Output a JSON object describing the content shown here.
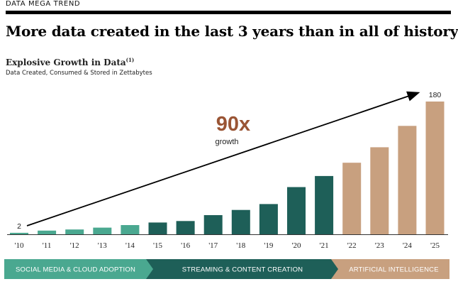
{
  "header": {
    "section_tag": "DATA MEGA TREND",
    "headline": "More data created in the last 3 years than in all of history"
  },
  "chart_data": {
    "type": "bar",
    "title": "Explosive Growth in Data",
    "title_footnote": "(1)",
    "subtitle": "Data Created, Consumed & Stored in Zettabytes",
    "categories": [
      "'10",
      "'11",
      "'12",
      "'13",
      "'14",
      "'15",
      "'16",
      "'17",
      "'18",
      "'19",
      "'20",
      "'21",
      "'22",
      "'23",
      "'24",
      "'25"
    ],
    "values": [
      2,
      5,
      6.5,
      9,
      12.5,
      16,
      18,
      26,
      33,
      41,
      64,
      79,
      97,
      118,
      147,
      180
    ],
    "data_labels": [
      {
        "index": 0,
        "text": "2"
      },
      {
        "index": 15,
        "text": "180"
      }
    ],
    "ylim": [
      0,
      180
    ],
    "growth_callout": {
      "value": "90x",
      "label": "growth"
    },
    "colors": {
      "early": "#4aa890",
      "mid": "#1e5f58",
      "forecast": "#c8a07f",
      "callout": "#9a5535",
      "arrow": "#000000",
      "axis": "#333333"
    },
    "bar_color_groups": [
      "early",
      "early",
      "early",
      "early",
      "early",
      "mid",
      "mid",
      "mid",
      "mid",
      "mid",
      "mid",
      "mid",
      "forecast",
      "forecast",
      "forecast",
      "forecast"
    ],
    "eras": [
      {
        "label": "SOCIAL MEDIA & CLOUD ADOPTION",
        "color": "#4aa890",
        "from_index": 0,
        "to_index": 4
      },
      {
        "label": "STREAMING & CONTENT CREATION",
        "color": "#1e5f58",
        "from_index": 5,
        "to_index": 11
      },
      {
        "label": "ARTIFICIAL INTELLIGENCE",
        "color": "#c8a07f",
        "from_index": 12,
        "to_index": 15
      }
    ]
  }
}
